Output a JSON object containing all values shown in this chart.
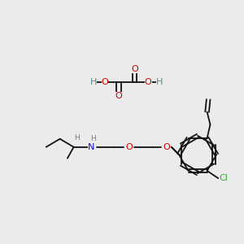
{
  "bg_color": "#ebebeb",
  "bond_color": "#111111",
  "o_color": "#cc0000",
  "n_color": "#1111cc",
  "h_color": "#5a8888",
  "cl_color": "#33aa33",
  "fig_w": 3.0,
  "fig_h": 3.0,
  "dpi": 100,
  "xlim": [
    0,
    300
  ],
  "ylim": [
    0,
    300
  ],
  "lw": 1.3,
  "fs": 8.0,
  "fs_small": 6.5
}
